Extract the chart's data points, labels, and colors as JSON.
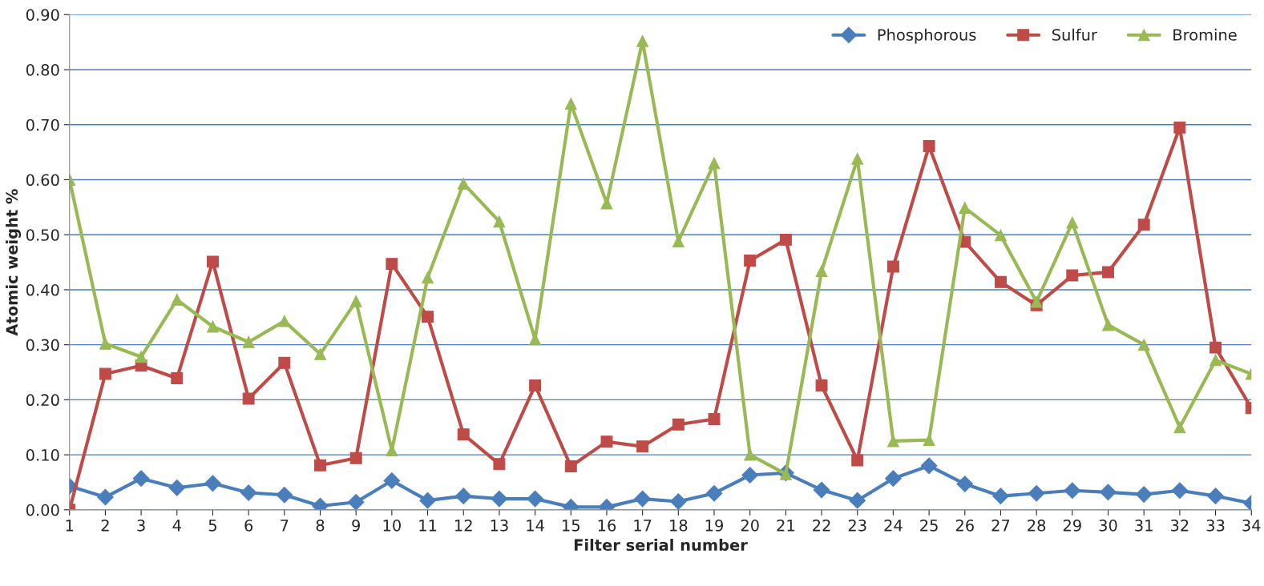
{
  "chart_data": {
    "type": "line",
    "xlabel": "Filter serial number",
    "ylabel": "Atomic weight %",
    "categories": [
      "1",
      "2",
      "3",
      "4",
      "5",
      "6",
      "7",
      "8",
      "9",
      "10",
      "11",
      "12",
      "13",
      "14",
      "15",
      "16",
      "17",
      "18",
      "19",
      "20",
      "21",
      "22",
      "23",
      "24",
      "25",
      "26",
      "27",
      "28",
      "29",
      "30",
      "31",
      "32",
      "33",
      "34"
    ],
    "series": [
      {
        "name": "Phosphorous",
        "color": "#4a7ebb",
        "marker": "diamond",
        "values": [
          0.043,
          0.023,
          0.057,
          0.04,
          0.048,
          0.031,
          0.027,
          0.007,
          0.014,
          0.053,
          0.017,
          0.025,
          0.02,
          0.02,
          0.005,
          0.005,
          0.02,
          0.015,
          0.03,
          0.063,
          0.067,
          0.036,
          0.017,
          0.057,
          0.08,
          0.047,
          0.025,
          0.03,
          0.035,
          0.032,
          0.028,
          0.035,
          0.025,
          0.012
        ]
      },
      {
        "name": "Sulfur",
        "color": "#be4b48",
        "marker": "square",
        "values": [
          0.0,
          0.247,
          0.262,
          0.239,
          0.451,
          0.202,
          0.267,
          0.081,
          0.094,
          0.447,
          0.351,
          0.137,
          0.083,
          0.226,
          0.079,
          0.124,
          0.115,
          0.155,
          0.165,
          0.453,
          0.491,
          0.226,
          0.09,
          0.442,
          0.661,
          0.487,
          0.414,
          0.372,
          0.426,
          0.432,
          0.518,
          0.695,
          0.295,
          0.185
        ]
      },
      {
        "name": "Bromine",
        "color": "#98b954",
        "marker": "triangle",
        "values": [
          0.6,
          0.302,
          0.278,
          0.382,
          0.333,
          0.305,
          0.343,
          0.283,
          0.379,
          0.108,
          0.422,
          0.593,
          0.524,
          0.31,
          0.738,
          0.557,
          0.852,
          0.488,
          0.63,
          0.1,
          0.065,
          0.434,
          0.638,
          0.125,
          0.127,
          0.549,
          0.499,
          0.378,
          0.522,
          0.336,
          0.3,
          0.15,
          0.272,
          0.247
        ]
      }
    ],
    "ylim": [
      0,
      0.9
    ],
    "yticks": [
      {
        "value": 0,
        "label": "0.00"
      },
      {
        "value": 0.1,
        "label": "0.10"
      },
      {
        "value": 0.2,
        "label": "0.20"
      },
      {
        "value": 0.3,
        "label": "0.30"
      },
      {
        "value": 0.4,
        "label": "0.40"
      },
      {
        "value": 0.5,
        "label": "0.50"
      },
      {
        "value": 0.6,
        "label": "0.60"
      },
      {
        "value": 0.7,
        "label": "0.70"
      },
      {
        "value": 0.8,
        "label": "0.80"
      },
      {
        "value": 0.9,
        "label": "0.90"
      }
    ],
    "grid": "y",
    "legend": "top right",
    "line_style": "solid"
  }
}
